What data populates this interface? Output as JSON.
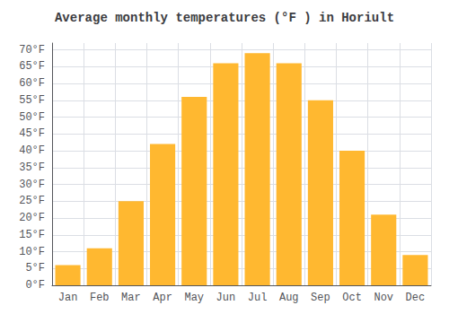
{
  "chart_data": {
    "type": "bar",
    "title": "Average monthly temperatures (°F ) in Horiult",
    "categories": [
      "Jan",
      "Feb",
      "Mar",
      "Apr",
      "May",
      "Jun",
      "Jul",
      "Aug",
      "Sep",
      "Oct",
      "Nov",
      "Dec"
    ],
    "values": [
      6,
      11,
      25,
      42,
      56,
      66,
      69,
      66,
      55,
      40,
      21,
      9
    ],
    "color": "#FFB830",
    "ylim": [
      0,
      72
    ],
    "yticks": [
      {
        "value": 0,
        "label": "0°F"
      },
      {
        "value": 5,
        "label": "5°F"
      },
      {
        "value": 10,
        "label": "10°F"
      },
      {
        "value": 15,
        "label": "15°F"
      },
      {
        "value": 20,
        "label": "20°F"
      },
      {
        "value": 25,
        "label": "25°F"
      },
      {
        "value": 30,
        "label": "30°F"
      },
      {
        "value": 35,
        "label": "35°F"
      },
      {
        "value": 40,
        "label": "40°F"
      },
      {
        "value": 45,
        "label": "45°F"
      },
      {
        "value": 50,
        "label": "50°F"
      },
      {
        "value": 55,
        "label": "55°F"
      },
      {
        "value": 60,
        "label": "60°F"
      },
      {
        "value": 65,
        "label": "65°F"
      },
      {
        "value": 70,
        "label": "70°F"
      }
    ],
    "grid": true
  }
}
